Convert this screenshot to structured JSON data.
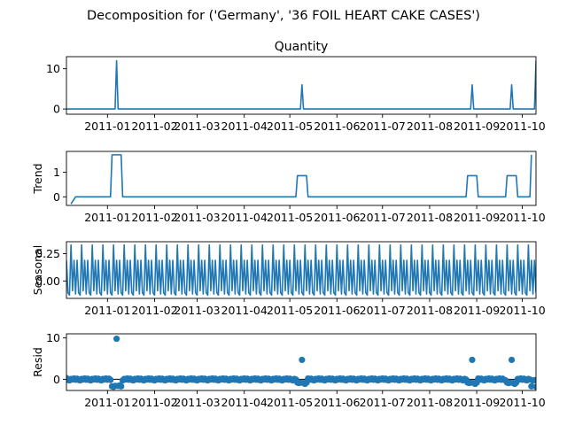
{
  "title": "Decomposition for ('Germany', '36 FOIL HEART CAKE CASES')",
  "line_color": "#1f77b4",
  "x_tick_labels": [
    "2011-01",
    "2011-02",
    "2011-03",
    "2011-04",
    "2011-05",
    "2011-06",
    "2011-07",
    "2011-08",
    "2011-09",
    "2011-10"
  ],
  "chart_data": [
    {
      "type": "line",
      "title": "Quantity",
      "ylabel": "",
      "ylim": [
        -1.3,
        13
      ],
      "yticks": [
        0,
        10
      ],
      "ytick_labels": [
        "0",
        "10"
      ],
      "x_range": [
        "2010-12-05",
        "2011-10-10"
      ],
      "series": [
        {
          "x": [
            "2010-12-05",
            "2011-01-06",
            "2011-01-07",
            "2011-01-08",
            "2011-05-08",
            "2011-05-09",
            "2011-05-10",
            "2011-08-28",
            "2011-08-29",
            "2011-08-30",
            "2011-09-23",
            "2011-09-24",
            "2011-09-25",
            "2011-10-09",
            "2011-10-10"
          ],
          "y": [
            0,
            0,
            12,
            0,
            0,
            6,
            0,
            0,
            6,
            0,
            0,
            6,
            0,
            0,
            12
          ]
        }
      ]
    },
    {
      "type": "line",
      "title": "",
      "ylabel": "Trend",
      "ylim": [
        -0.35,
        1.85
      ],
      "yticks": [
        0,
        1
      ],
      "ytick_labels": [
        "0",
        "1"
      ],
      "x_range": [
        "2010-12-05",
        "2011-10-10"
      ],
      "series": [
        {
          "x": [
            "2010-12-08",
            "2010-12-11",
            "2011-01-03",
            "2011-01-04",
            "2011-01-10",
            "2011-01-11",
            "2011-05-05",
            "2011-05-06",
            "2011-05-12",
            "2011-05-13",
            "2011-08-25",
            "2011-08-26",
            "2011-09-01",
            "2011-09-02",
            "2011-09-20",
            "2011-09-21",
            "2011-09-27",
            "2011-09-28",
            "2011-10-06",
            "2011-10-07"
          ],
          "y": [
            -0.29,
            0,
            0,
            1.71,
            1.71,
            0,
            0,
            0.86,
            0.86,
            0,
            0,
            0.86,
            0.86,
            0,
            0,
            0.86,
            0.86,
            0,
            0,
            1.71
          ]
        }
      ]
    },
    {
      "type": "line",
      "title": "",
      "ylabel": "Seasonal",
      "ylim": [
        -0.16,
        0.36
      ],
      "yticks": [
        0.0,
        0.25
      ],
      "ytick_labels": [
        "0.00",
        "0.25"
      ],
      "x_range": [
        "2010-12-05",
        "2011-10-10"
      ],
      "series": [
        {
          "period_days": 7,
          "first_date": "2010-12-05",
          "last_date": "2011-10-10",
          "weekly_pattern": [
            0.19,
            -0.11,
            -0.13,
            0.33,
            -0.09,
            0.19,
            -0.12
          ]
        }
      ]
    },
    {
      "type": "scatter",
      "title": "",
      "ylabel": "Resid",
      "ylim": [
        -2.7,
        11
      ],
      "yticks": [
        0,
        10
      ],
      "ytick_labels": [
        "0",
        "10"
      ],
      "baseline": 0,
      "x_range": [
        "2010-12-05",
        "2011-10-10"
      ],
      "series": [
        {
          "first_date": "2010-12-05",
          "last_date": "2011-10-10",
          "default_value": 0,
          "weekly_pattern": [
            0.15,
            -0.15,
            -0.25,
            0.1,
            -0.05,
            0.2,
            -0.1
          ],
          "points": [
            {
              "x": "2010-12-05",
              "y": 0.3
            },
            {
              "x": "2011-01-04",
              "y": -1.7
            },
            {
              "x": "2011-01-05",
              "y": -1.8
            },
            {
              "x": "2011-01-06",
              "y": -1.6
            },
            {
              "x": "2011-01-07",
              "y": 9.8
            },
            {
              "x": "2011-01-08",
              "y": -1.6
            },
            {
              "x": "2011-01-09",
              "y": -1.5
            },
            {
              "x": "2011-01-10",
              "y": -1.7
            },
            {
              "x": "2011-05-06",
              "y": -0.8
            },
            {
              "x": "2011-05-07",
              "y": -0.9
            },
            {
              "x": "2011-05-08",
              "y": -0.8
            },
            {
              "x": "2011-05-09",
              "y": 4.7
            },
            {
              "x": "2011-05-10",
              "y": -0.9
            },
            {
              "x": "2011-05-11",
              "y": -1.1
            },
            {
              "x": "2011-05-12",
              "y": -0.8
            },
            {
              "x": "2011-08-26",
              "y": -0.8
            },
            {
              "x": "2011-08-27",
              "y": -0.9
            },
            {
              "x": "2011-08-28",
              "y": -0.8
            },
            {
              "x": "2011-08-29",
              "y": 4.7
            },
            {
              "x": "2011-08-30",
              "y": -0.9
            },
            {
              "x": "2011-08-31",
              "y": -1.1
            },
            {
              "x": "2011-09-01",
              "y": -0.8
            },
            {
              "x": "2011-09-21",
              "y": -0.8
            },
            {
              "x": "2011-09-22",
              "y": -0.9
            },
            {
              "x": "2011-09-23",
              "y": -0.8
            },
            {
              "x": "2011-09-24",
              "y": 4.7
            },
            {
              "x": "2011-09-25",
              "y": -0.9
            },
            {
              "x": "2011-09-26",
              "y": -1.1
            },
            {
              "x": "2011-09-27",
              "y": -0.8
            },
            {
              "x": "2011-10-07",
              "y": -1.7
            },
            {
              "x": "2011-10-08",
              "y": -0.3
            },
            {
              "x": "2011-10-09",
              "y": -0.2
            },
            {
              "x": "2011-10-10",
              "y": -1.8
            }
          ]
        }
      ]
    }
  ]
}
